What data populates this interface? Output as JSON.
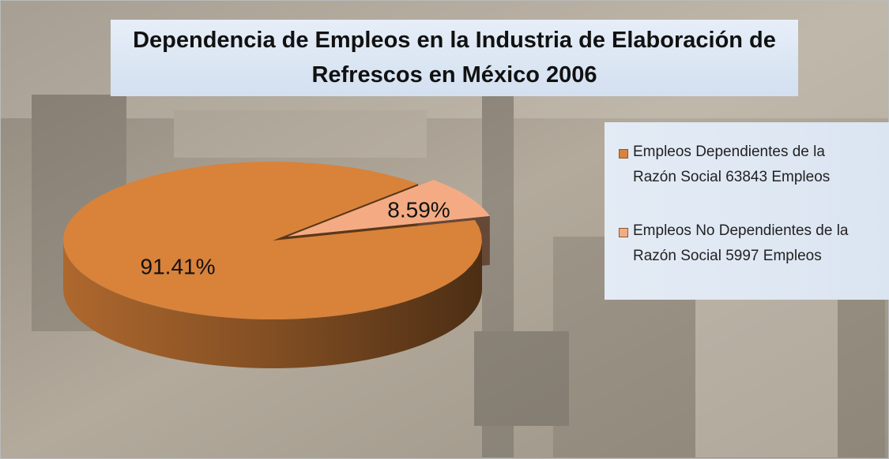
{
  "chart_data": {
    "type": "pie",
    "title": "Dependencia de Empleos en la Industria de Elaboración de Refrescos en México 2006",
    "categories": [
      "Empleos Dependientes de la Razón Social 63843 Empleos",
      "Empleos No Dependientes de la Razón Social 5997 Empleos"
    ],
    "values": [
      91.41,
      8.59
    ],
    "value_labels": [
      "91.41%",
      "8.59%"
    ],
    "colors": [
      "#d9823a",
      "#f4ab83"
    ],
    "legend": "right"
  }
}
